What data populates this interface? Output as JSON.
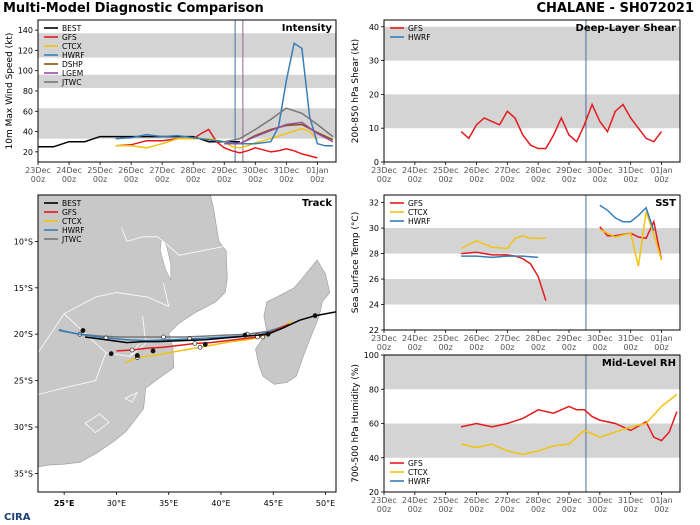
{
  "header": {
    "title": "Multi-Model Diagnostic Comparison",
    "storm": "CHALANE - SH072021"
  },
  "logo_text": "CIRA",
  "colors": {
    "BEST": "#000000",
    "GFS": "#e41a1c",
    "CTCX": "#f2c20f",
    "HWRF": "#377eb8",
    "DSHP": "#8c510a",
    "LGEM": "#984ea3",
    "JTWC": "#777777",
    "band": "#d4d4d4",
    "land": "#c8c8c8",
    "ocean": "#ffffff"
  },
  "time_ticks": [
    "23Dec\n00z",
    "24Dec\n00z",
    "25Dec\n00z",
    "26Dec\n00z",
    "27Dec\n00z",
    "28Dec\n00z",
    "29Dec\n00z",
    "30Dec\n00z",
    "31Dec\n00z",
    "01Jan\n00z"
  ],
  "chart_data": [
    {
      "id": "intensity",
      "type": "line",
      "title": "Intensity",
      "ylabel": "10m Max Wind Speed (kt)",
      "xlim": [
        0,
        9.6
      ],
      "ylim": [
        10,
        150
      ],
      "yticks": [
        20,
        40,
        60,
        80,
        100,
        120,
        140
      ],
      "bands": [
        [
          33,
          63
        ],
        [
          83,
          96
        ],
        [
          113,
          137
        ]
      ],
      "vlines": [
        6.35,
        6.6
      ],
      "legend": [
        "BEST",
        "GFS",
        "CTCX",
        "HWRF",
        "DSHP",
        "LGEM",
        "JTWC"
      ],
      "legend_pos": "upper-left",
      "series": [
        {
          "name": "BEST",
          "x": [
            0,
            0.5,
            1,
            1.5,
            2,
            2.5,
            3,
            3.5,
            4,
            4.5,
            5,
            5.5,
            6,
            6.5
          ],
          "y": [
            25,
            25,
            30,
            30,
            35,
            35,
            35,
            35,
            35,
            35,
            35,
            30,
            30,
            30
          ]
        },
        {
          "name": "GFS",
          "x": [
            2.5,
            3,
            3.5,
            4,
            4.5,
            5,
            5.25,
            5.5,
            5.75,
            6,
            6.25,
            6.5,
            6.75,
            7,
            7.25,
            7.5,
            7.75,
            8,
            8.25,
            8.5,
            8.75,
            9
          ],
          "y": [
            26,
            27,
            31,
            31,
            33,
            33,
            38,
            42,
            30,
            24,
            21,
            19,
            21,
            24,
            22,
            20,
            21,
            23,
            21,
            18,
            16,
            14
          ]
        },
        {
          "name": "CTCX",
          "x": [
            2.5,
            3,
            3.5,
            4,
            4.5,
            5,
            5.5,
            6,
            6.25,
            6.5,
            6.75,
            7,
            7.5,
            8,
            8.5,
            8.75,
            9
          ],
          "y": [
            26,
            26,
            24,
            28,
            33,
            33,
            33,
            30,
            25,
            24,
            26,
            29,
            33,
            38,
            43,
            40,
            32
          ]
        },
        {
          "name": "HWRF",
          "x": [
            2.5,
            3,
            3.5,
            4,
            4.5,
            5,
            5.5,
            6,
            6.5,
            7,
            7.5,
            7.75,
            8,
            8.25,
            8.5,
            8.75,
            9,
            9.25,
            9.5
          ],
          "y": [
            33,
            34,
            37,
            35,
            36,
            34,
            32,
            30,
            28,
            28,
            30,
            45,
            90,
            127,
            122,
            55,
            28,
            26,
            26
          ]
        },
        {
          "name": "DSHP",
          "x": [
            6,
            6.5,
            7,
            7.5,
            8,
            8.5,
            9,
            9.5
          ],
          "y": [
            28,
            28,
            36,
            42,
            46,
            47,
            39,
            32
          ]
        },
        {
          "name": "LGEM",
          "x": [
            6,
            6.5,
            7,
            7.5,
            8,
            8.5,
            9,
            9.5
          ],
          "y": [
            28,
            28,
            35,
            41,
            47,
            49,
            38,
            30
          ]
        },
        {
          "name": "JTWC",
          "x": [
            6,
            6.5,
            7,
            7.5,
            8,
            8.5,
            9,
            9.5
          ],
          "y": [
            30,
            33,
            42,
            52,
            63,
            58,
            47,
            35
          ]
        }
      ]
    },
    {
      "id": "track",
      "type": "map",
      "title": "Track",
      "xlim": [
        22.5,
        51
      ],
      "ylim": [
        -37,
        -5
      ],
      "xticks": [
        25,
        30,
        35,
        40,
        45,
        50
      ],
      "xticklabels": [
        "25°E",
        "30°E",
        "35°E",
        "40°E",
        "45°E",
        "50°E"
      ],
      "yticks": [
        -10,
        -15,
        -20,
        -25,
        -30,
        -35
      ],
      "yticklabels": [
        "10°S",
        "15°S",
        "20°S",
        "25°S",
        "30°S",
        "35°S"
      ],
      "legend": [
        "BEST",
        "GFS",
        "CTCX",
        "HWRF",
        "JTWC"
      ],
      "legend_pos": "upper-left",
      "series": [
        {
          "name": "BEST",
          "lon": [
            51,
            49,
            47.5,
            46,
            44.5,
            42.5,
            40.5,
            38.5,
            36,
            34,
            32.5,
            31,
            29,
            27
          ],
          "lat": [
            -17.6,
            -18,
            -18.5,
            -19.3,
            -20,
            -20.2,
            -20.4,
            -20.6,
            -20.7,
            -20.8,
            -20.8,
            -20.9,
            -20.6,
            -20.3
          ],
          "dots": [
            [
              49,
              -18
            ],
            [
              44.5,
              -20
            ],
            [
              42.3,
              -20.1
            ],
            [
              38.5,
              -21.1
            ],
            [
              33.5,
              -21.8
            ],
            [
              32,
              -22.3
            ],
            [
              29.5,
              -22.1
            ],
            [
              26.8,
              -19.6
            ]
          ]
        },
        {
          "name": "GFS",
          "lon": [
            46.5,
            45,
            43.5,
            42,
            40.5,
            39,
            37.5,
            36,
            34.5,
            33,
            31.5,
            30
          ],
          "lat": [
            -18.9,
            -19.7,
            -20.3,
            -20.5,
            -20.7,
            -20.9,
            -21,
            -21.2,
            -21.4,
            -21.5,
            -21.7,
            -21.8
          ]
        },
        {
          "name": "CTCX",
          "lon": [
            46.8,
            45.5,
            44,
            42.5,
            41,
            39.5,
            38,
            36.5,
            35,
            33.5,
            32,
            30.8
          ],
          "lat": [
            -18.6,
            -19.5,
            -20.3,
            -20.6,
            -20.8,
            -21.1,
            -21.4,
            -21.7,
            -22,
            -22.3,
            -22.5,
            -23.1
          ]
        },
        {
          "name": "HWRF",
          "lon": [
            46.5,
            45,
            43.5,
            42,
            40.5,
            39,
            37,
            35,
            33,
            31,
            29,
            27,
            25.5,
            24.5
          ],
          "lat": [
            -18.9,
            -19.6,
            -20.1,
            -20.2,
            -20.3,
            -20.4,
            -20.5,
            -20.6,
            -20.7,
            -20.6,
            -20.4,
            -20.1,
            -19.8,
            -19.5
          ]
        },
        {
          "name": "JTWC",
          "lon": [
            46.5,
            44.5,
            42.5,
            40.5,
            38.5,
            36.5,
            34.5,
            32.5,
            30.5,
            28.5,
            26.5,
            24.5
          ],
          "lat": [
            -19,
            -19.7,
            -20,
            -20.1,
            -20.2,
            -20.3,
            -20.3,
            -20.3,
            -20.3,
            -20.2,
            -20,
            -19.6
          ]
        }
      ]
    },
    {
      "id": "shear",
      "type": "line",
      "title": "Deep-Layer Shear",
      "ylabel": "200-850 hPa Shear (kt)",
      "xlim": [
        0,
        9.6
      ],
      "ylim": [
        0,
        42
      ],
      "yticks": [
        0,
        10,
        20,
        30,
        40
      ],
      "bands": [
        [
          10,
          20
        ],
        [
          30,
          40
        ]
      ],
      "vlines": [
        6.55
      ],
      "legend": [
        "GFS",
        "HWRF"
      ],
      "legend_pos": "upper-left",
      "series": [
        {
          "name": "GFS",
          "x": [
            2.5,
            2.75,
            3,
            3.25,
            3.5,
            3.75,
            4,
            4.25,
            4.5,
            4.75,
            5,
            5.25,
            5.5,
            5.75,
            6,
            6.25,
            6.5,
            6.75,
            7,
            7.25,
            7.5,
            7.75,
            8,
            8.25,
            8.5,
            8.75,
            9,
            9.25,
            9.5
          ],
          "y": [
            9,
            7,
            11,
            13,
            12,
            11,
            15,
            13,
            8,
            5,
            4,
            4,
            8,
            13,
            8,
            6,
            11,
            17,
            12,
            9,
            15,
            17,
            13,
            10,
            7,
            6,
            9,
            null,
            null
          ]
        }
      ]
    },
    {
      "id": "sst",
      "type": "line",
      "title": "SST",
      "ylabel": "Sea Surface Temp (°C)",
      "xlim": [
        0,
        9.6
      ],
      "ylim": [
        22,
        32.6
      ],
      "yticks": [
        22,
        24,
        26,
        28,
        30,
        32
      ],
      "bands": [
        [
          24,
          26
        ],
        [
          28,
          30
        ]
      ],
      "vlines": [
        6.55
      ],
      "legend": [
        "GFS",
        "CTCX",
        "HWRF"
      ],
      "legend_pos": "upper-left",
      "series": [
        {
          "name": "GFS",
          "x": [
            2.5,
            3,
            3.5,
            4,
            4.25,
            4.5,
            4.75,
            5,
            5.25
          ],
          "y": [
            28,
            28.1,
            27.9,
            27.9,
            27.8,
            27.6,
            27.2,
            26.2,
            24.3
          ],
          "x2": [
            7,
            7.25,
            7.5,
            7.75,
            8,
            8.25,
            8.5,
            8.75,
            9
          ],
          "y2": [
            30.1,
            29.4,
            29.4,
            29.5,
            29.6,
            29.3,
            29.2,
            30.5,
            27.5
          ]
        },
        {
          "name": "CTCX",
          "x": [
            2.5,
            3,
            3.5,
            4,
            4.25,
            4.5,
            4.75,
            5,
            5.25
          ],
          "y": [
            28.4,
            29,
            28.5,
            28.4,
            29.2,
            29.4,
            29.2,
            29.2,
            29.2
          ],
          "x2": [
            7,
            7.5,
            8,
            8.25,
            8.5,
            8.75,
            9
          ],
          "y2": [
            29.9,
            29.3,
            29.6,
            27.0,
            31.3,
            29.5,
            27.5
          ]
        },
        {
          "name": "HWRF",
          "x": [
            2.5,
            3,
            3.5,
            4,
            4.5,
            5
          ],
          "y": [
            27.8,
            27.8,
            27.7,
            27.8,
            27.8,
            27.7
          ],
          "x2": [
            7,
            7.25,
            7.5,
            7.75,
            8,
            8.25,
            8.5,
            8.75
          ],
          "y2": [
            31.8,
            31.4,
            30.8,
            30.5,
            30.5,
            31.0,
            31.6,
            29.8
          ]
        }
      ]
    },
    {
      "id": "rh",
      "type": "line",
      "title": "Mid-Level RH",
      "ylabel": "700-500 hPa Humidity (%)",
      "xlim": [
        0,
        9.6
      ],
      "ylim": [
        20,
        100
      ],
      "yticks": [
        20,
        40,
        60,
        80,
        100
      ],
      "bands": [
        [
          40,
          60
        ],
        [
          80,
          100
        ]
      ],
      "vlines": [
        6.55
      ],
      "legend": [
        "GFS",
        "CTCX",
        "HWRF"
      ],
      "legend_pos": "lower-left",
      "series": [
        {
          "name": "GFS",
          "x": [
            2.5,
            3,
            3.5,
            4,
            4.5,
            5,
            5.5,
            6,
            6.25,
            6.5,
            6.75,
            7,
            7.5,
            8,
            8.5,
            8.75,
            9,
            9.25,
            9.5
          ],
          "y": [
            58,
            60,
            58,
            60,
            63,
            68,
            66,
            70,
            68,
            68,
            64,
            62,
            60,
            56,
            61,
            52,
            50,
            55,
            67
          ]
        },
        {
          "name": "CTCX",
          "x": [
            2.5,
            3,
            3.5,
            4,
            4.5,
            5,
            5.5,
            6,
            6.5,
            7,
            7.5,
            8,
            8.5,
            9,
            9.5
          ],
          "y": [
            48,
            46,
            48,
            44,
            42,
            44,
            47,
            48,
            56,
            52,
            55,
            58,
            60,
            70,
            77
          ]
        }
      ]
    }
  ]
}
